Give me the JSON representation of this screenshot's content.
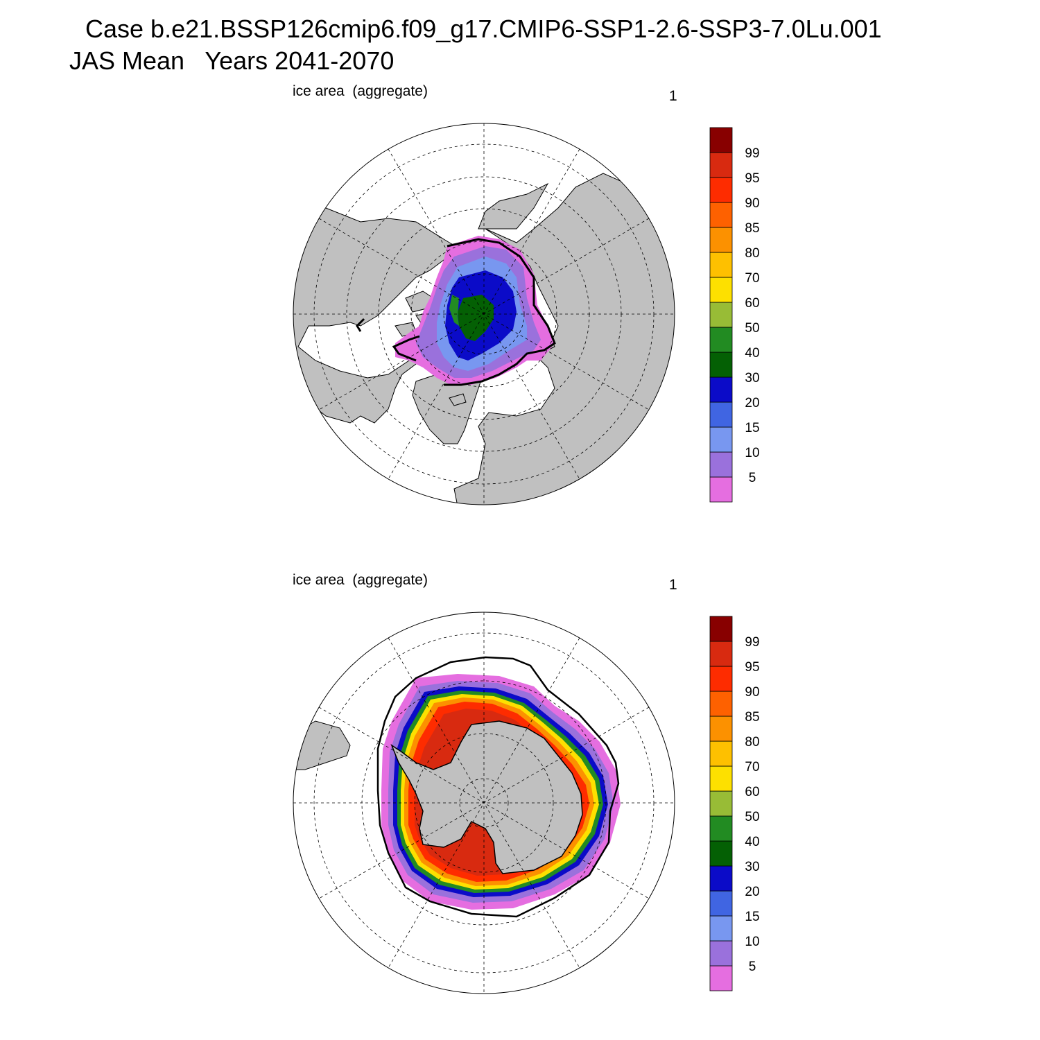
{
  "header": {
    "case_line": "Case b.e21.BSSP126cmip6.f09_g17.CMIP6-SSP1-2.6-SSP3-7.0Lu.001",
    "period_line": "JAS Mean   Years 2041-2070"
  },
  "panels": [
    {
      "id": "north",
      "field_label": "ice area  (aggregate)",
      "units_label": "1"
    },
    {
      "id": "south",
      "field_label": "ice area  (aggregate)",
      "units_label": "1"
    }
  ],
  "colorbar": {
    "levels": [
      "5",
      "10",
      "15",
      "20",
      "30",
      "40",
      "50",
      "60",
      "70",
      "80",
      "85",
      "90",
      "95",
      "99"
    ],
    "colors": [
      "#e56ee0",
      "#9a71dc",
      "#7897f0",
      "#4065e2",
      "#0b0bc8",
      "#046004",
      "#228b22",
      "#98bc36",
      "#fde000",
      "#fec000",
      "#fc9100",
      "#fe6100",
      "#fe2c00",
      "#d82a10",
      "#880000"
    ]
  },
  "map_colors": {
    "land": "#c0c0c0",
    "ocean": "#ffffff",
    "outline": "#000000"
  }
}
